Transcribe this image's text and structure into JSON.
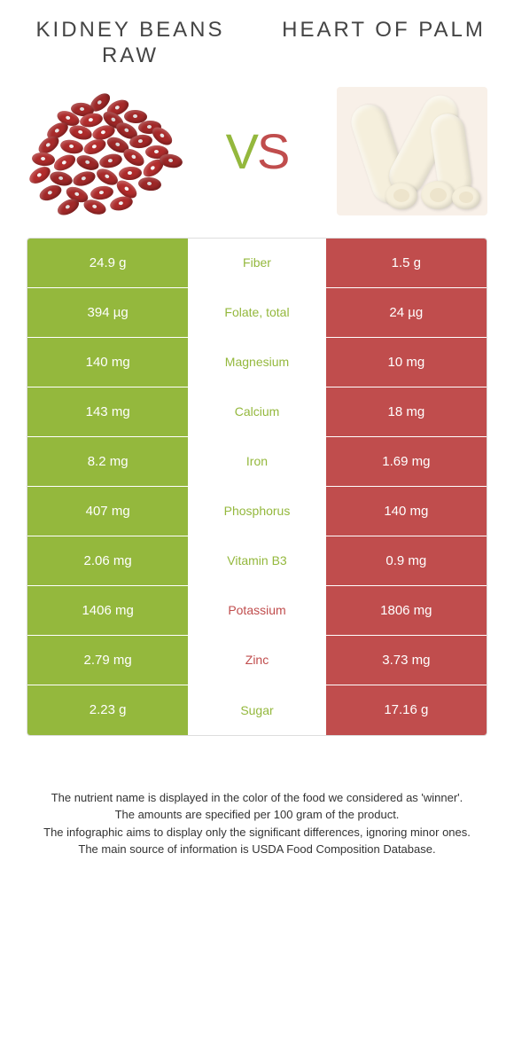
{
  "colors": {
    "left": "#94b83d",
    "right": "#c04d4d",
    "mid_bg": "#ffffff"
  },
  "foods": {
    "left": {
      "title": "KIDNEY BEANS RAW"
    },
    "right": {
      "title": "HEART OF PALM"
    }
  },
  "vs": {
    "v": "V",
    "s": "S"
  },
  "rows": [
    {
      "left": "24.9 g",
      "label": "Fiber",
      "right": "1.5 g",
      "winner": "left"
    },
    {
      "left": "394 µg",
      "label": "Folate, total",
      "right": "24 µg",
      "winner": "left"
    },
    {
      "left": "140 mg",
      "label": "Magnesium",
      "right": "10 mg",
      "winner": "left"
    },
    {
      "left": "143 mg",
      "label": "Calcium",
      "right": "18 mg",
      "winner": "left"
    },
    {
      "left": "8.2 mg",
      "label": "Iron",
      "right": "1.69 mg",
      "winner": "left"
    },
    {
      "left": "407 mg",
      "label": "Phosphorus",
      "right": "140 mg",
      "winner": "left"
    },
    {
      "left": "2.06 mg",
      "label": "Vitamin B3",
      "right": "0.9 mg",
      "winner": "left"
    },
    {
      "left": "1406 mg",
      "label": "Potassium",
      "right": "1806 mg",
      "winner": "right"
    },
    {
      "left": "2.79 mg",
      "label": "Zinc",
      "right": "3.73 mg",
      "winner": "right"
    },
    {
      "left": "2.23 g",
      "label": "Sugar",
      "right": "17.16 g",
      "winner": "left"
    }
  ],
  "footer": {
    "l1": "The nutrient name is displayed in the color of the food we considered as 'winner'.",
    "l2": "The amounts are specified per 100 gram of the product.",
    "l3": "The infographic aims to display only the significant differences, ignoring minor ones.",
    "l4": "The main source of information is USDA Food Composition Database."
  }
}
